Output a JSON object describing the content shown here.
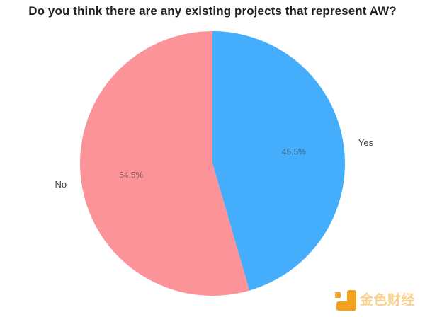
{
  "title": "Do you think there are any existing projects that represent AW?",
  "chart_data": {
    "type": "pie",
    "title": "Do you think there are any existing projects that represent AW?",
    "categories": [
      "Yes",
      "No"
    ],
    "values": [
      45.5,
      54.5
    ],
    "inside_labels": [
      "45.5%",
      "54.5%"
    ],
    "slice_colors": [
      "#45aefc",
      "#fb9399"
    ],
    "start_angle_deg": 0,
    "direction": "clockwise",
    "legend_position": "none",
    "inside_label_color": "rgba(40,40,40,0.55)",
    "outside_label_color": "#3d3d3d"
  },
  "watermark": {
    "text": "金色财经",
    "logo": "jinse-finance-logo",
    "logo_color": "#f5a31f",
    "text_color": "rgba(245,172,48,0.55)"
  }
}
